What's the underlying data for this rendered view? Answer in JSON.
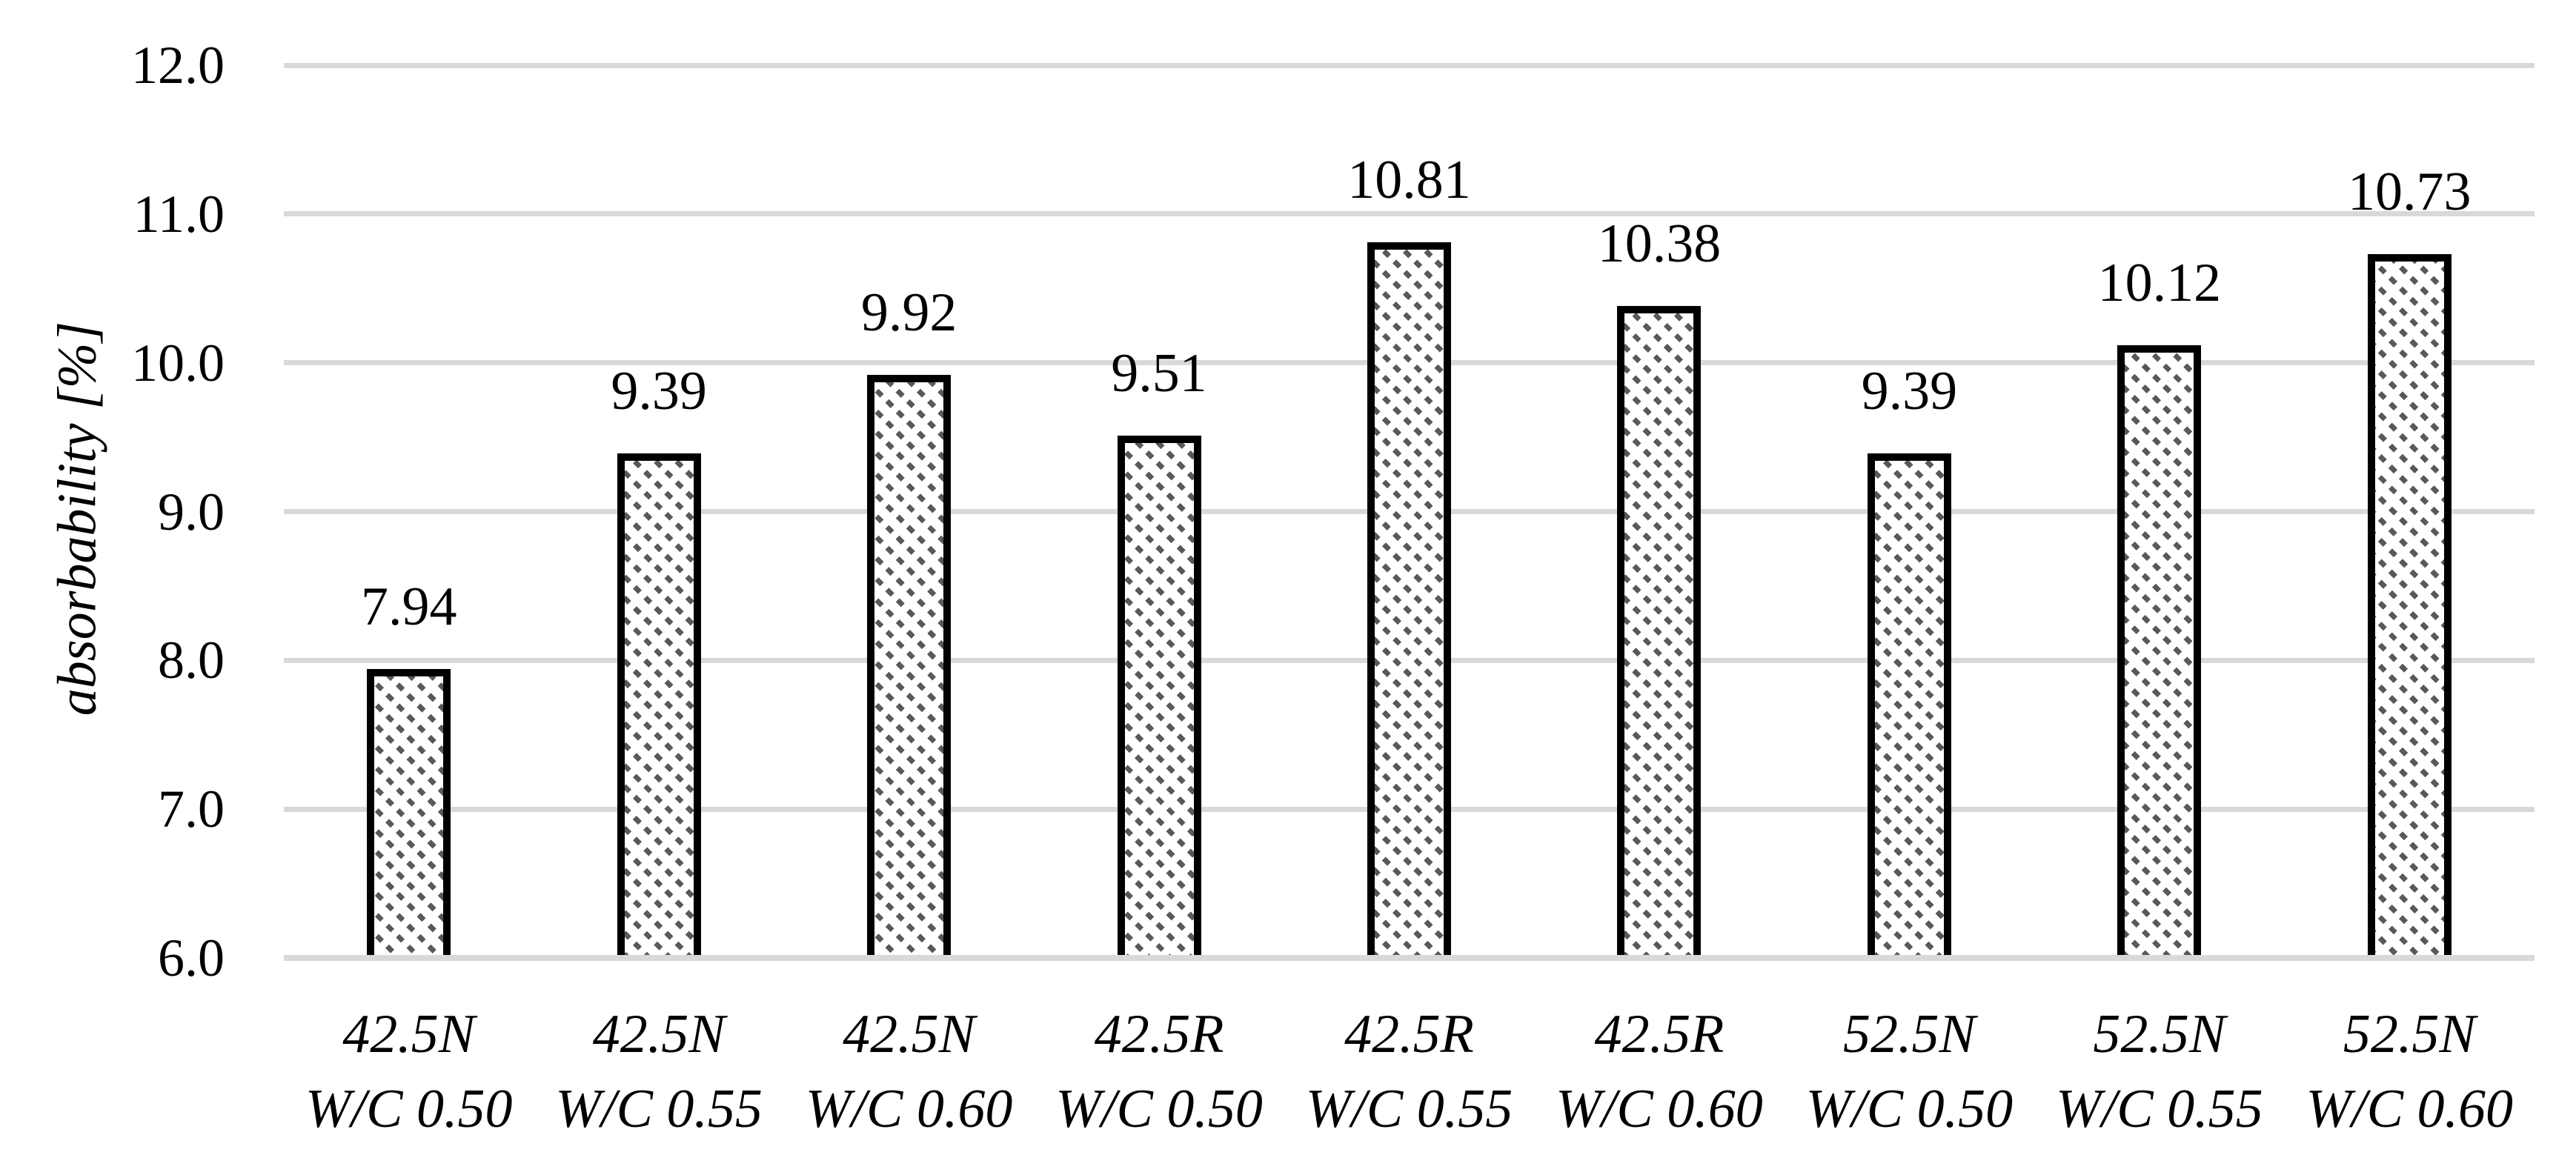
{
  "chart_data": {
    "type": "bar",
    "title": "",
    "xlabel": "",
    "ylabel": "absorbability [%]",
    "ylim": [
      6.0,
      12.0
    ],
    "ytick_step": 1.0,
    "yticks": [
      "12.0",
      "11.0",
      "10.0",
      "9.0",
      "8.0",
      "7.0",
      "6.0"
    ],
    "categories": [
      {
        "line1": "42.5N",
        "line2": "W/C 0.50"
      },
      {
        "line1": "42.5N",
        "line2": "W/C 0.55"
      },
      {
        "line1": "42.5N",
        "line2": "W/C 0.60"
      },
      {
        "line1": "42.5R",
        "line2": "W/C 0.50"
      },
      {
        "line1": "42.5R",
        "line2": "W/C 0.55"
      },
      {
        "line1": "42.5R",
        "line2": "W/C 0.60"
      },
      {
        "line1": "52.5N",
        "line2": "W/C 0.50"
      },
      {
        "line1": "52.5N",
        "line2": "W/C 0.55"
      },
      {
        "line1": "52.5N",
        "line2": "W/C 0.60"
      }
    ],
    "values": [
      7.94,
      9.39,
      9.92,
      9.51,
      10.81,
      10.38,
      9.39,
      10.12,
      10.73
    ],
    "value_labels": [
      "7.94",
      "9.39",
      "9.92",
      "9.51",
      "10.81",
      "10.38",
      "9.39",
      "10.12",
      "10.73"
    ],
    "grid": "horizontal",
    "legend": "none",
    "colors": {
      "bar_hatch": "#595959",
      "bar_border": "#000000",
      "bar_background": "#ffffff",
      "gridline": "#d9d9d9",
      "text": "#000000"
    }
  }
}
